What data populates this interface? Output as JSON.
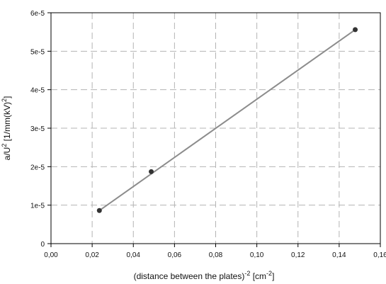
{
  "chart_data": {
    "type": "scatter",
    "xlabel": "(distance between the plates)^-2 [cm^-2]",
    "ylabel": "a/U^2 [1/mm(kV)^2]",
    "xlim": [
      0.0,
      0.16
    ],
    "ylim": [
      0,
      6e-05
    ],
    "xticks": [
      0.0,
      0.02,
      0.04,
      0.06,
      0.08,
      0.1,
      0.12,
      0.14,
      0.16
    ],
    "xtick_labels": [
      "0,00",
      "0,02",
      "0,04",
      "0,06",
      "0,08",
      "0,10",
      "0,12",
      "0,14",
      "0,16"
    ],
    "yticks": [
      0,
      1e-05,
      2e-05,
      3e-05,
      4e-05,
      5e-05,
      6e-05
    ],
    "ytick_labels": [
      "0",
      "1e-5",
      "2e-5",
      "3e-5",
      "4e-5",
      "5e-5",
      "6e-5"
    ],
    "grid": true,
    "points": [
      {
        "x": 0.0235,
        "y": 8.6e-06
      },
      {
        "x": 0.0487,
        "y": 1.87e-05
      },
      {
        "x": 0.1478,
        "y": 5.56e-05
      }
    ],
    "fit_line": [
      {
        "x": 0.0235,
        "y": 8.6e-06
      },
      {
        "x": 0.1478,
        "y": 5.56e-05
      }
    ],
    "colors": {
      "points": "#333333",
      "line": "#8c8c8c",
      "grid": "#b4b4b4"
    }
  }
}
